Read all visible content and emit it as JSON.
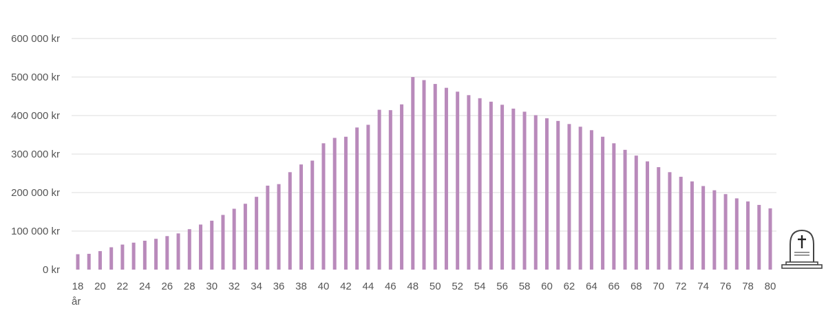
{
  "chart_data": {
    "type": "bar",
    "title": "",
    "xlabel": "år",
    "ylabel": "",
    "ylim": [
      0,
      600000
    ],
    "y_ticks": [
      {
        "value": 0,
        "label": "0 kr"
      },
      {
        "value": 100000,
        "label": "100 000 kr"
      },
      {
        "value": 200000,
        "label": "200 000 kr"
      },
      {
        "value": 300000,
        "label": "300 000 kr"
      },
      {
        "value": 400000,
        "label": "400 000 kr"
      },
      {
        "value": 500000,
        "label": "500 000 kr"
      },
      {
        "value": 600000,
        "label": "600 000 kr"
      }
    ],
    "x_tick_labels": [
      "18",
      "20",
      "22",
      "24",
      "26",
      "28",
      "30",
      "32",
      "34",
      "36",
      "38",
      "40",
      "42",
      "44",
      "46",
      "48",
      "50",
      "52",
      "54",
      "56",
      "58",
      "60",
      "62",
      "64",
      "66",
      "68",
      "70",
      "72",
      "74",
      "76",
      "78",
      "80"
    ],
    "categories": [
      18,
      19,
      20,
      21,
      22,
      23,
      24,
      25,
      26,
      27,
      28,
      29,
      30,
      31,
      32,
      33,
      34,
      35,
      36,
      37,
      38,
      39,
      40,
      41,
      42,
      43,
      44,
      45,
      46,
      47,
      48,
      49,
      50,
      51,
      52,
      53,
      54,
      55,
      56,
      57,
      58,
      59,
      60,
      61,
      62,
      63,
      64,
      65,
      66,
      67,
      68,
      69,
      70,
      71,
      72,
      73,
      74,
      75,
      76,
      77,
      78,
      79,
      80
    ],
    "values": [
      40000,
      41000,
      48000,
      58000,
      65000,
      70000,
      75000,
      80000,
      87000,
      94000,
      105000,
      117000,
      127000,
      142000,
      158000,
      171000,
      189000,
      218000,
      222000,
      253000,
      273000,
      283000,
      328000,
      342000,
      345000,
      369000,
      376000,
      415000,
      414000,
      429000,
      500000,
      492000,
      482000,
      472000,
      462000,
      453000,
      445000,
      436000,
      428000,
      418000,
      410000,
      401000,
      393000,
      386000,
      378000,
      371000,
      362000,
      345000,
      328000,
      311000,
      296000,
      281000,
      266000,
      253000,
      241000,
      229000,
      217000,
      206000,
      196000,
      185000,
      177000,
      168000,
      159000
    ],
    "bar_color": "#b98abb",
    "grid": true,
    "grid_color": "#dddddd",
    "end_icon": "gravestone-icon"
  }
}
